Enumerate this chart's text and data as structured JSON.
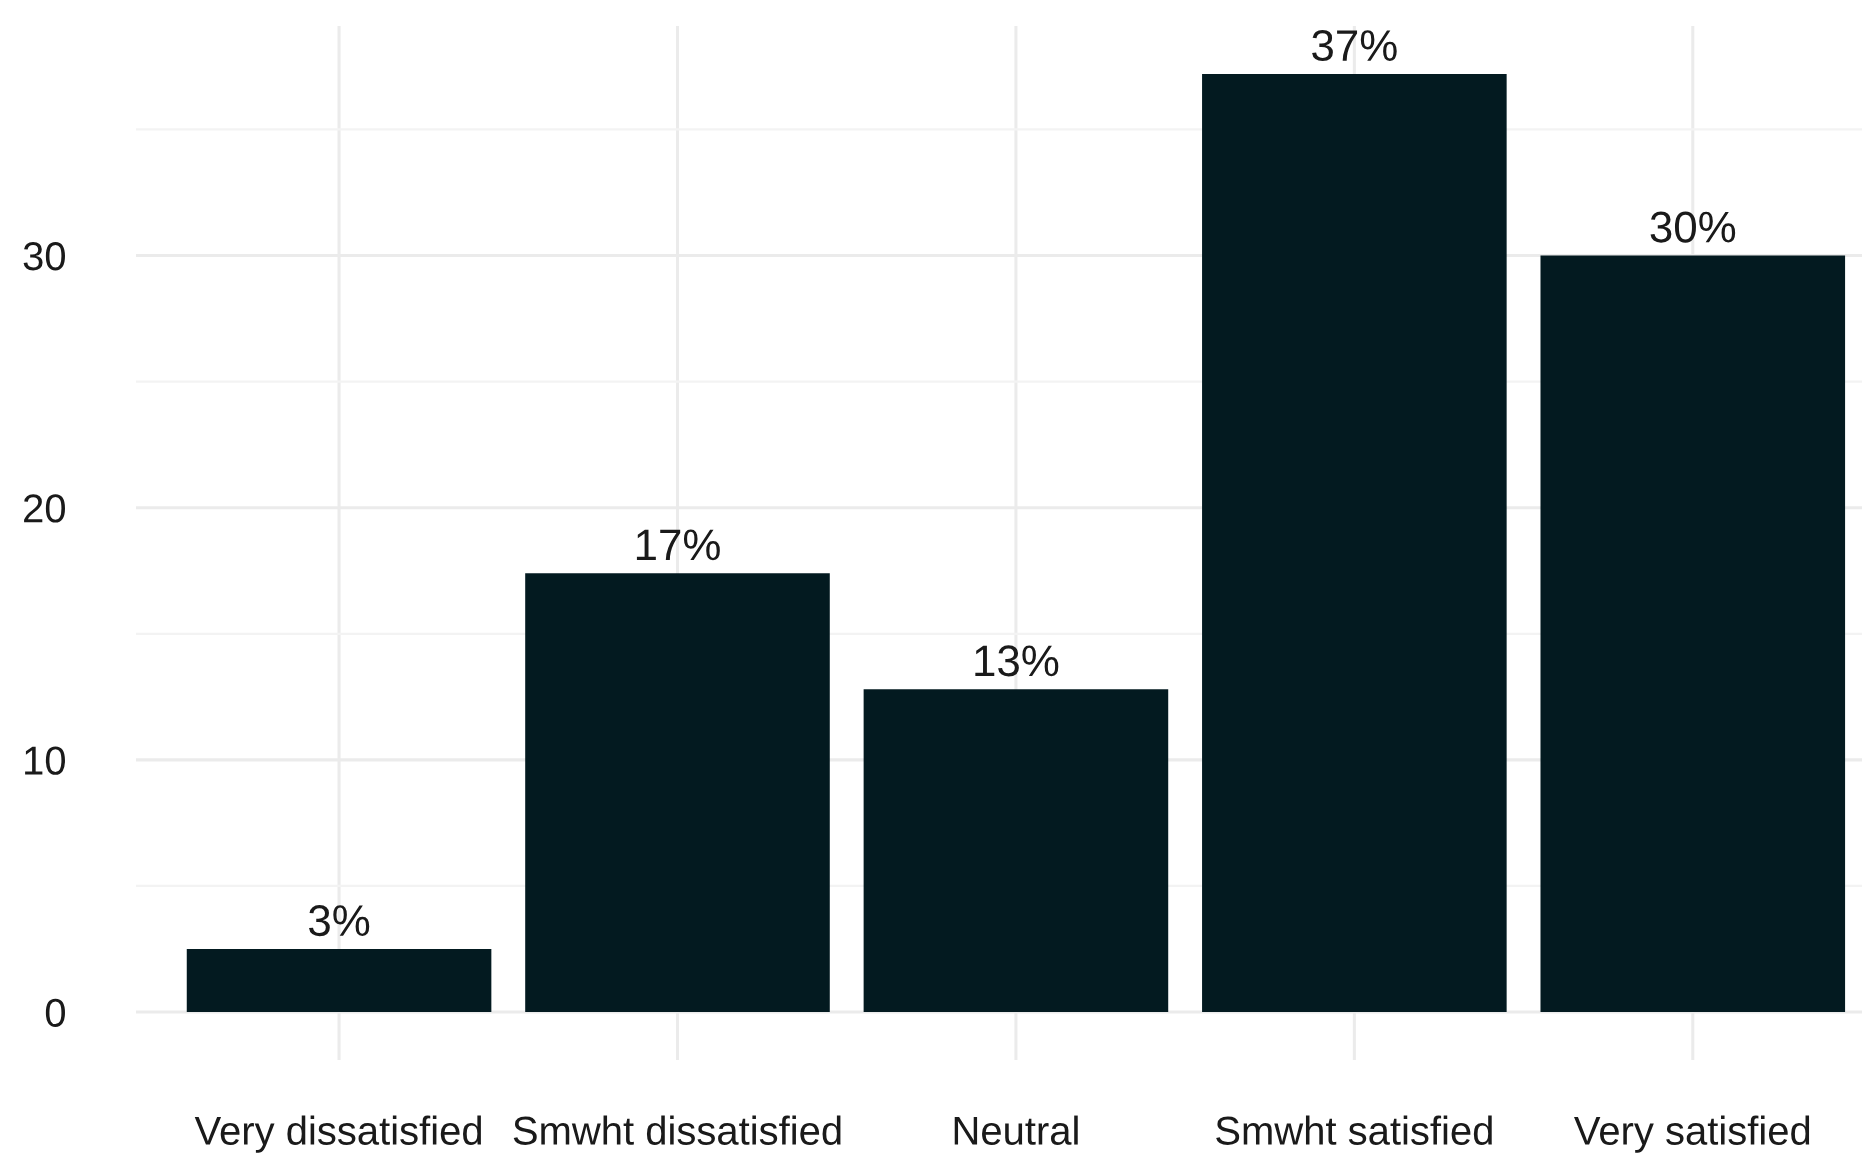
{
  "chart_data": {
    "type": "bar",
    "categories": [
      "Very dissatisfied",
      "Smwht dissatisfied",
      "Neutral",
      "Smwht satisfied",
      "Very satisfied"
    ],
    "values": [
      2.5,
      17.4,
      12.8,
      37.2,
      30.0
    ],
    "value_labels": [
      "3%",
      "17%",
      "13%",
      "37%",
      "30%"
    ],
    "color": "#031a20",
    "ylim": [
      -1.9,
      39.1
    ],
    "yticks": [
      0,
      {
        "value": 5,
        "label": null
      },
      10,
      {
        "value": 15,
        "label": null
      },
      20,
      {
        "value": 25,
        "label": null
      },
      30,
      {
        "value": 35,
        "label": null
      }
    ],
    "grid": true
  }
}
